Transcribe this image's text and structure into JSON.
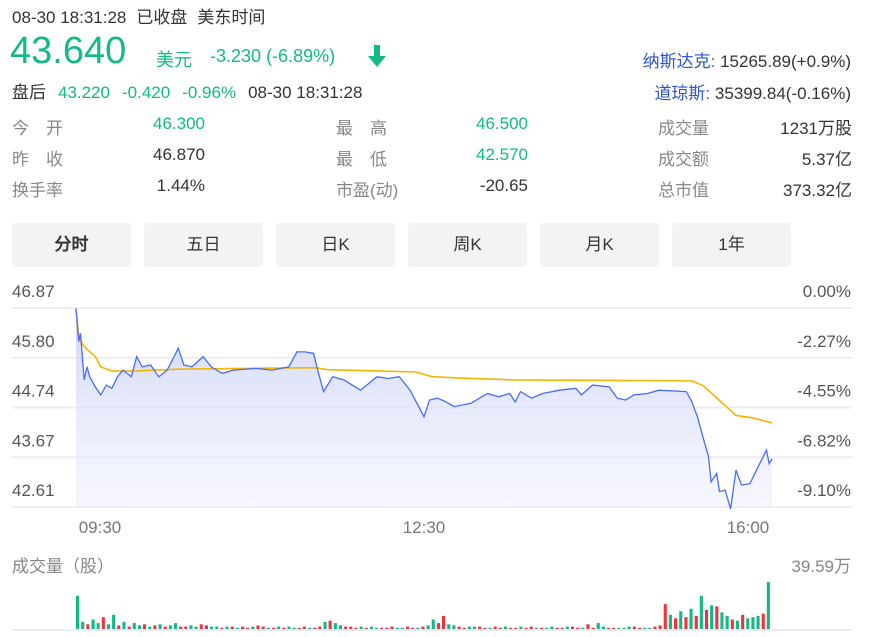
{
  "header": {
    "datetime": "08-30 18:31:28",
    "status": "已收盘",
    "timezone": "美东时间"
  },
  "quote": {
    "price": "43.640",
    "currency": "美元",
    "change": "-3.230",
    "change_pct": "(-6.89%)",
    "direction_icon": "arrow-down-icon"
  },
  "after_hours": {
    "label": "盘后",
    "price": "43.220",
    "change": "-0.420",
    "change_pct": "-0.96%",
    "datetime": "08-30 18:31:28"
  },
  "indices": [
    {
      "name": "纳斯达克:",
      "value": "15265.89(+0.9%)"
    },
    {
      "name": "道琼斯:",
      "value": "35399.84(-0.16%)"
    }
  ],
  "stats": [
    [
      {
        "label": "今　开",
        "value": "46.300",
        "color": "#12b886"
      },
      {
        "label": "最　高",
        "value": "46.500",
        "color": "#12b886"
      },
      {
        "label": "成交量",
        "value": "1231万股",
        "color": "#333"
      }
    ],
    [
      {
        "label": "昨　收",
        "value": "46.870",
        "color": "#333"
      },
      {
        "label": "最　低",
        "value": "42.570",
        "color": "#12b886"
      },
      {
        "label": "成交额",
        "value": "5.37亿",
        "color": "#333"
      }
    ],
    [
      {
        "label": "换手率",
        "value": "1.44%",
        "color": "#333"
      },
      {
        "label": "市盈(动)",
        "value": "-20.65",
        "color": "#333"
      },
      {
        "label": "总市值",
        "value": "373.32亿",
        "color": "#333"
      }
    ]
  ],
  "tabs": [
    {
      "label": "分时",
      "active": true
    },
    {
      "label": "五日"
    },
    {
      "label": "日K"
    },
    {
      "label": "周K"
    },
    {
      "label": "月K"
    },
    {
      "label": "1年"
    }
  ],
  "chart_data": {
    "type": "line",
    "price_ticks": [
      "46.87",
      "45.80",
      "44.74",
      "43.67",
      "42.61"
    ],
    "pct_ticks": [
      "0.00%",
      "-2.27%",
      "-4.55%",
      "-6.82%",
      "-9.10%"
    ],
    "ylim": [
      42.61,
      46.87
    ],
    "x_ticks": [
      "09:30",
      "12:30",
      "16:00"
    ],
    "x_range_minutes": [
      0,
      390
    ],
    "series": [
      {
        "name": "price",
        "color": "#4a6cf7",
        "points": [
          [
            0,
            46.86
          ],
          [
            1.5,
            46.15
          ],
          [
            2.5,
            46.33
          ],
          [
            4.6,
            45.33
          ],
          [
            6.2,
            45.61
          ],
          [
            7.7,
            45.4
          ],
          [
            10.8,
            45.18
          ],
          [
            13.9,
            45.01
          ],
          [
            17,
            45.22
          ],
          [
            20.1,
            45.15
          ],
          [
            23.2,
            45.4
          ],
          [
            26.3,
            45.54
          ],
          [
            31,
            45.4
          ],
          [
            34,
            45.83
          ],
          [
            37.1,
            45.61
          ],
          [
            41.8,
            45.65
          ],
          [
            46.4,
            45.4
          ],
          [
            51.1,
            45.54
          ],
          [
            57.3,
            46.01
          ],
          [
            60.4,
            45.65
          ],
          [
            65,
            45.61
          ],
          [
            71.2,
            45.83
          ],
          [
            75.8,
            45.61
          ],
          [
            82,
            45.47
          ],
          [
            88.2,
            45.54
          ],
          [
            100.6,
            45.58
          ],
          [
            109.9,
            45.54
          ],
          [
            119.2,
            45.61
          ],
          [
            123.8,
            45.93
          ],
          [
            128.4,
            45.93
          ],
          [
            133.1,
            45.9
          ],
          [
            136.2,
            45.43
          ],
          [
            138.7,
            45.08
          ],
          [
            143.9,
            45.4
          ],
          [
            150.1,
            45.33
          ],
          [
            159.4,
            45.11
          ],
          [
            168.7,
            45.4
          ],
          [
            174.9,
            45.36
          ],
          [
            181.1,
            45.4
          ],
          [
            187.2,
            45.11
          ],
          [
            195,
            44.54
          ],
          [
            198.1,
            44.9
          ],
          [
            202.7,
            44.94
          ],
          [
            207.4,
            44.86
          ],
          [
            212,
            44.76
          ],
          [
            221.3,
            44.83
          ],
          [
            230.6,
            45.04
          ],
          [
            236.8,
            44.97
          ],
          [
            243,
            45.04
          ],
          [
            246.1,
            44.86
          ],
          [
            249.1,
            45.08
          ],
          [
            255.3,
            44.94
          ],
          [
            261.5,
            45.04
          ],
          [
            270.8,
            45.11
          ],
          [
            280.1,
            45.15
          ],
          [
            283.2,
            45.01
          ],
          [
            289.4,
            45.22
          ],
          [
            298.7,
            45.18
          ],
          [
            303.3,
            44.94
          ],
          [
            308,
            44.9
          ],
          [
            312.6,
            45.01
          ],
          [
            320.3,
            45.04
          ],
          [
            326.5,
            45.11
          ],
          [
            342,
            45.08
          ],
          [
            345.1,
            44.86
          ],
          [
            348.2,
            44.54
          ],
          [
            351.3,
            44.11
          ],
          [
            354.4,
            43.69
          ],
          [
            355.9,
            43.15
          ],
          [
            359,
            43.33
          ],
          [
            360.6,
            42.94
          ],
          [
            363.7,
            42.97
          ],
          [
            366.8,
            42.57
          ],
          [
            369.8,
            43.4
          ],
          [
            372.9,
            43.08
          ],
          [
            377.6,
            43.11
          ],
          [
            382.2,
            43.47
          ],
          [
            386.9,
            43.83
          ],
          [
            388.4,
            43.54
          ],
          [
            390,
            43.64
          ]
        ]
      },
      {
        "name": "average",
        "color": "#f5b400",
        "points": [
          [
            0,
            46.86
          ],
          [
            1.5,
            46.25
          ],
          [
            4.6,
            46.04
          ],
          [
            10.8,
            45.83
          ],
          [
            13.9,
            45.61
          ],
          [
            20.1,
            45.52
          ],
          [
            32.5,
            45.52
          ],
          [
            57.3,
            45.56
          ],
          [
            125.4,
            45.59
          ],
          [
            134.6,
            45.59
          ],
          [
            140.8,
            45.55
          ],
          [
            190.3,
            45.5
          ],
          [
            199.6,
            45.4
          ],
          [
            215,
            45.37
          ],
          [
            246.1,
            45.33
          ],
          [
            304.9,
            45.32
          ],
          [
            345.1,
            45.31
          ],
          [
            351.3,
            45.21
          ],
          [
            360.6,
            44.89
          ],
          [
            366.8,
            44.68
          ],
          [
            369.8,
            44.57
          ],
          [
            379.1,
            44.52
          ],
          [
            390,
            44.41
          ]
        ]
      }
    ],
    "volume": {
      "label": "成交量（股）",
      "max_label": "39.59万",
      "max": 39.59,
      "values": [
        28,
        6,
        4,
        8,
        5,
        10,
        4,
        12,
        3,
        6,
        2,
        5,
        3,
        4,
        2,
        3,
        4,
        2,
        3,
        5,
        2,
        2,
        3,
        2,
        4,
        3,
        2,
        2,
        1,
        2,
        2,
        1,
        2,
        1,
        2,
        3,
        2,
        1,
        1,
        2,
        1,
        2,
        1,
        1,
        2,
        1,
        1,
        2,
        6,
        7,
        5,
        3,
        2,
        2,
        1,
        2,
        1,
        2,
        1,
        1,
        1,
        2,
        1,
        1,
        2,
        1,
        1,
        2,
        3,
        8,
        5,
        11,
        4,
        3,
        2,
        1,
        2,
        2,
        2,
        1,
        1,
        2,
        1,
        2,
        1,
        1,
        2,
        1,
        2,
        1,
        1,
        1,
        2,
        1,
        1,
        2,
        2,
        1,
        1,
        4,
        1,
        5,
        2,
        1,
        1,
        1,
        1,
        2,
        2,
        1,
        1,
        1,
        2,
        3,
        21,
        12,
        9,
        15,
        10,
        17,
        11,
        28,
        16,
        20,
        19,
        14,
        11,
        8,
        7,
        12,
        9,
        10,
        11,
        13,
        39.59
      ],
      "colors": "uuduuduududuudududuudduudduudududduddududuuddudduduuddduduuddduudduduudduudduuddudduddudduduudduddudduudduuudduudddudududududuududu"
    }
  }
}
